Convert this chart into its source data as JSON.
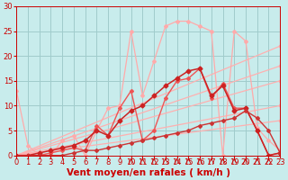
{
  "xlabel": "Vent moyen/en rafales ( km/h )",
  "bg_color": "#c8ecec",
  "grid_color": "#a0cccc",
  "xlim": [
    0,
    23
  ],
  "ylim": [
    0,
    30
  ],
  "xticks": [
    0,
    1,
    2,
    3,
    4,
    5,
    6,
    7,
    8,
    9,
    10,
    11,
    12,
    13,
    14,
    15,
    16,
    17,
    18,
    19,
    20,
    21,
    22,
    23
  ],
  "yticks": [
    0,
    5,
    10,
    15,
    20,
    25,
    30
  ],
  "lines": [
    {
      "x": [
        0,
        23
      ],
      "y": [
        0,
        22
      ],
      "color": "#ffb0b0",
      "lw": 0.9,
      "marker": "D",
      "ms": 1.5
    },
    {
      "x": [
        0,
        23
      ],
      "y": [
        0,
        18
      ],
      "color": "#ffb0b0",
      "lw": 0.9,
      "marker": "D",
      "ms": 1.5
    },
    {
      "x": [
        0,
        23
      ],
      "y": [
        0,
        15
      ],
      "color": "#ffb0b0",
      "lw": 0.9,
      "marker": "D",
      "ms": 1.5
    },
    {
      "x": [
        0,
        23
      ],
      "y": [
        0,
        10
      ],
      "color": "#ffb0b0",
      "lw": 0.9,
      "marker": "D",
      "ms": 1.5
    },
    {
      "x": [
        0,
        23
      ],
      "y": [
        0,
        7
      ],
      "color": "#ffb0b0",
      "lw": 0.9,
      "marker": "D",
      "ms": 1.5
    },
    {
      "x": [
        0,
        1,
        2,
        3,
        4,
        5,
        6,
        7,
        8,
        9,
        10,
        11,
        12,
        13,
        14,
        15,
        16,
        17,
        18,
        19,
        20,
        21,
        22,
        23
      ],
      "y": [
        13,
        2,
        0,
        0,
        3,
        4,
        0,
        5,
        9.5,
        10,
        25,
        12,
        19,
        26,
        27,
        27,
        26,
        25,
        0,
        25,
        23,
        5.5,
        3,
        1
      ],
      "color": "#ffaaaa",
      "lw": 0.9,
      "marker": "D",
      "ms": 2
    },
    {
      "x": [
        0,
        1,
        2,
        3,
        4,
        5,
        6,
        7,
        8,
        9,
        10,
        11,
        12,
        13,
        14,
        15,
        16,
        17,
        18,
        19,
        20,
        21,
        22,
        23
      ],
      "y": [
        0,
        0,
        0,
        0.5,
        1,
        1.5,
        1,
        6,
        4,
        9.5,
        13,
        3,
        5,
        11.5,
        15,
        15.5,
        17.5,
        11.5,
        14.5,
        9.5,
        9.5,
        5,
        0,
        0.5
      ],
      "color": "#ee5555",
      "lw": 1.0,
      "marker": "D",
      "ms": 2
    },
    {
      "x": [
        0,
        1,
        2,
        3,
        4,
        5,
        6,
        7,
        8,
        9,
        10,
        11,
        12,
        13,
        14,
        15,
        16,
        17,
        18,
        19,
        20,
        21,
        22,
        23
      ],
      "y": [
        0,
        0,
        0.5,
        1,
        1.5,
        2,
        3,
        5,
        4,
        7,
        9,
        10,
        12,
        14,
        15.5,
        17,
        17.5,
        12,
        14,
        9,
        9.5,
        5,
        0,
        0.5
      ],
      "color": "#cc2222",
      "lw": 1.1,
      "marker": "D",
      "ms": 2.5
    },
    {
      "x": [
        0,
        1,
        2,
        3,
        4,
        5,
        6,
        7,
        8,
        9,
        10,
        11,
        12,
        13,
        14,
        15,
        16,
        17,
        18,
        19,
        20,
        21,
        22,
        23
      ],
      "y": [
        0,
        0,
        0,
        0,
        0,
        0.5,
        1,
        1,
        1.5,
        2,
        2.5,
        3,
        3.5,
        4,
        4.5,
        5,
        6,
        6.5,
        7,
        7.5,
        9,
        7.5,
        5,
        0.5
      ],
      "color": "#cc3333",
      "lw": 1.0,
      "marker": "D",
      "ms": 2
    }
  ],
  "tick_color": "#cc0000",
  "xlabel_color": "#cc0000",
  "tick_fontsize": 6.0,
  "xlabel_fontsize": 7.5
}
